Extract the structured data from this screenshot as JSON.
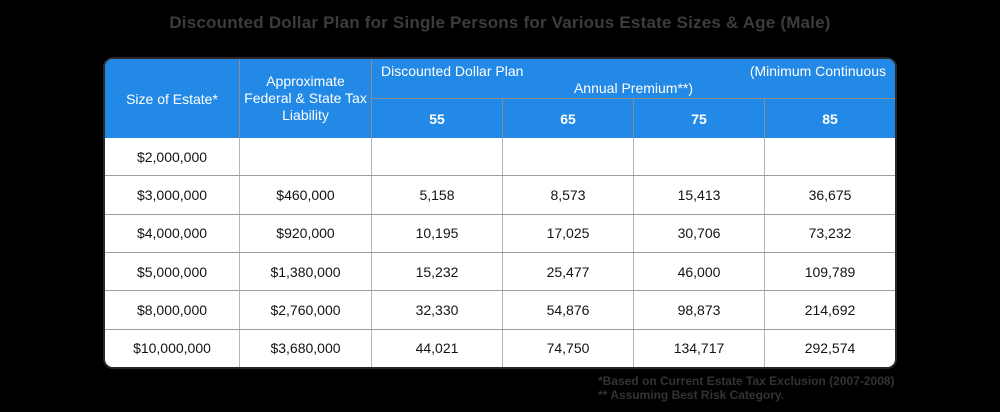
{
  "title": "Discounted Dollar Plan for Single Persons for Various Estate Sizes & Age (Male)",
  "colors": {
    "background": "#000000",
    "header_blue": "#2289E6",
    "header_text": "#FFFFFF",
    "card_border": "#282828",
    "body_text": "#141414",
    "title_text": "#3C3C3C",
    "footnote_text": "#333333",
    "header_divider": "#8C8C8C",
    "row_divider": "#9E9E9E"
  },
  "header": {
    "size_of_estate": "Size of Estate*",
    "tax_liability": "Approximate Federal & State Tax Liability",
    "plan_label_left": "Discounted Dollar Plan",
    "plan_label_right": "(Minimum Continuous",
    "plan_label_line2": "Annual Premium**)",
    "ages": [
      "55",
      "65",
      "75",
      "85"
    ]
  },
  "chart_data": {
    "type": "table",
    "title": "Discounted Dollar Plan for Single Persons for Various Estate Sizes & Age (Male)",
    "column_group_label": "Discounted Dollar Plan (Minimum Continuous Annual Premium**)",
    "columns": [
      "Size of Estate*",
      "Approximate Federal & State Tax Liability",
      "55",
      "65",
      "75",
      "85"
    ],
    "rows": [
      [
        "$2,000,000",
        "",
        "",
        "",
        "",
        ""
      ],
      [
        "$3,000,000",
        "$460,000",
        "5,158",
        "8,573",
        "15,413",
        "36,675"
      ],
      [
        "$4,000,000",
        "$920,000",
        "10,195",
        "17,025",
        "30,706",
        "73,232"
      ],
      [
        "$5,000,000",
        "$1,380,000",
        "15,232",
        "25,477",
        "46,000",
        "109,789"
      ],
      [
        "$8,000,000",
        "$2,760,000",
        "32,330",
        "54,876",
        "98,873",
        "214,692"
      ],
      [
        "$10,000,000",
        "$3,680,000",
        "44,021",
        "74,750",
        "134,717",
        "292,574"
      ]
    ],
    "footnotes": [
      "*Based on Current Estate Tax Exclusion (2007-2008)",
      "** Assuming Best Risk Category."
    ]
  },
  "footnotes": {
    "line1": "*Based on Current Estate Tax Exclusion (2007-2008)",
    "line2": "** Assuming Best Risk Category."
  }
}
